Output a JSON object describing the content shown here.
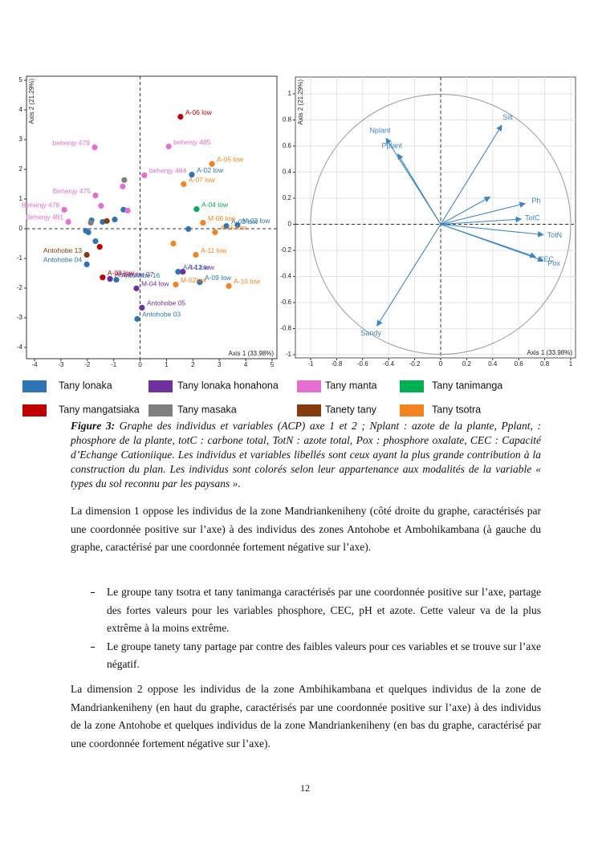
{
  "chart_data": [
    {
      "type": "scatter",
      "x_label": "Axis 1 (33.98%)",
      "y_label": "Axis 2 (21.29%)",
      "xlim": [
        -4,
        5
      ],
      "ylim": [
        -4,
        5
      ],
      "xticks": [
        -4,
        -3,
        -2,
        -1,
        0,
        1,
        2,
        3,
        4,
        5
      ],
      "yticks": [
        -4,
        -3,
        -2,
        -1,
        0,
        1,
        2,
        3,
        4,
        5
      ],
      "grid": false,
      "series": [
        {
          "name": "Tany lonaka",
          "color": "#2e75b6",
          "labels": [
            "A-02 low",
            "A-03 low",
            "M-03 low",
            null,
            "A-14 low",
            "A-09 low",
            "Antohobe 04",
            "Antohobe 16",
            "Antohobe 03",
            null,
            null,
            null,
            null,
            null,
            null,
            null
          ],
          "x": [
            1.96,
            3.27,
            3.69,
            1.83,
            1.44,
            2.26,
            -2.02,
            -0.9,
            -0.11,
            -2.05,
            -1.84,
            -1.42,
            -0.96,
            -0.63,
            -1.69,
            -1.96
          ],
          "values": [
            1.82,
            0.09,
            0.12,
            -0.01,
            -1.45,
            -1.8,
            -1.2,
            -1.72,
            -3.04,
            -0.07,
            0.28,
            0.23,
            0.31,
            0.64,
            -0.42,
            -0.12
          ]
        },
        {
          "name": "Tany lonaka honahona",
          "color": "#7030a0",
          "labels": [
            "Antohobe 07",
            "M-04 low",
            "Antohobe 05",
            "A-12 low"
          ],
          "x": [
            -1.14,
            -0.14,
            0.07,
            1.62
          ],
          "values": [
            -1.69,
            -2.01,
            -2.66,
            -1.45
          ]
        },
        {
          "name": "Tany manta",
          "color": "#e46fd0",
          "labels": [
            "behenjy 479",
            "behenjy 485",
            "behenjy 484",
            "Behenjy 475",
            "Behenjy 478",
            "Behenjy 481",
            null,
            null,
            null
          ],
          "x": [
            -1.72,
            1.08,
            0.16,
            -1.69,
            -2.87,
            -2.72,
            -1.48,
            -0.66,
            -0.47
          ],
          "values": [
            2.74,
            2.77,
            1.8,
            1.12,
            0.64,
            0.23,
            0.77,
            1.42,
            0.61
          ]
        },
        {
          "name": "Tany tanimanga",
          "color": "#00b050",
          "labels": [
            "A-04 low"
          ],
          "x": [
            2.14
          ],
          "values": [
            0.66
          ]
        },
        {
          "name": "Tany mangatsiaka",
          "color": "#c00000",
          "labels": [
            "A-06 low",
            null,
            "A-08 low"
          ],
          "x": [
            1.53,
            -1.53,
            -1.42
          ],
          "values": [
            3.77,
            -0.61,
            -1.64
          ]
        },
        {
          "name": "Tany masaka",
          "color": "#7f7f7f",
          "labels": [
            null,
            null
          ],
          "x": [
            -0.6,
            -1.87
          ],
          "values": [
            1.64,
            0.2
          ]
        },
        {
          "name": "Tanety tany",
          "color": "#843c0c",
          "labels": [
            "Antohobe 13",
            null
          ],
          "x": [
            -2.02,
            -1.26
          ],
          "values": [
            -0.88,
            0.26
          ]
        },
        {
          "name": "Tany tsotra",
          "color": "#f58220",
          "labels": [
            "A-05 low",
            "A-07 low",
            "M-06 low",
            "A-15 low",
            "A-11 low",
            "M-02low",
            "A-10 low",
            null
          ],
          "x": [
            2.72,
            1.65,
            2.38,
            2.84,
            2.11,
            1.35,
            3.36,
            1.26
          ],
          "values": [
            2.18,
            1.5,
            0.2,
            -0.12,
            -0.88,
            -1.88,
            -1.93,
            -0.5
          ]
        }
      ]
    },
    {
      "type": "arrows",
      "x_label": "Axis 1 (33.98%)",
      "y_label": "Axis 2 (21.29%)",
      "xlim": [
        -1,
        1
      ],
      "ylim": [
        -1,
        1
      ],
      "xticks": [
        -1,
        -0.8,
        -0.6,
        -0.4,
        -0.2,
        0,
        0.2,
        0.4,
        0.6,
        0.8,
        1
      ],
      "yticks": [
        -1,
        -0.8,
        -0.6,
        -0.4,
        -0.2,
        0,
        0.2,
        0.4,
        0.6,
        0.8,
        1
      ],
      "grid": true,
      "color": "#3d85c6",
      "labels": [
        "Nplant",
        "Pplant",
        "Silt",
        null,
        "Ph",
        "TotC",
        "TotN",
        "Pox",
        "CEC",
        "Sandy"
      ],
      "x": [
        -0.42,
        -0.33,
        0.47,
        0.38,
        0.65,
        0.62,
        0.79,
        0.79,
        0.73,
        -0.49
      ],
      "values": [
        0.66,
        0.54,
        0.76,
        0.21,
        0.16,
        0.04,
        -0.08,
        -0.28,
        -0.25,
        -0.78
      ]
    }
  ],
  "caption": {
    "label": "Figure 3:",
    "text": "Graphe des individus et variables (ACP) axe 1 et 2 ; Nplant : azote de la plante, Pplant, : phosphore de la plante, totC : carbone total, TotN : azote total, Pox : phosphore oxalate, CEC : Capacité d’Echange Cationiique. Les individus et variables libellés sont ceux ayant la plus grande contribution à la construction du plan. Les individus sont colorés selon leur appartenance aux modalités de la variable « types du sol reconnu par les paysans »."
  },
  "paragraphs": [
    "La dimension 1 oppose les individus de la zone Mandriankeniheny (côté droite du graphe, caractérisés par une coordonnée positive sur l’axe) à des individus des zones Antohobe et Ambohikambana (à gauche du graphe, caractérisé par une coordonnée fortement négative sur l’axe).",
    "La dimension 2 oppose les individus de la zone Ambihikambana et quelques individus de la zone de Mandriankeniheny (en haut du graphe, caractérisés par une coordonnée positive sur l’axe) à des individus de la zone Antohobe et quelques individus de la zone Mandriankeniheny (en bas du graphe, caractérisé par une coordonnée fortement négative sur l’axe)."
  ],
  "bullets": [
    "Le groupe tany tsotra et tany tanimanga caractérisés par une coordonnée positive sur l’axe, partage des fortes valeurs pour les variables phosphore, CEC, pH et azote. Cette valeur va de la plus extrême à la moins extrême.",
    "Le groupe tanety tany partage par contre des faibles valeurs pour ces variables et se trouve sur l’axe négatif."
  ],
  "page_number": "12"
}
